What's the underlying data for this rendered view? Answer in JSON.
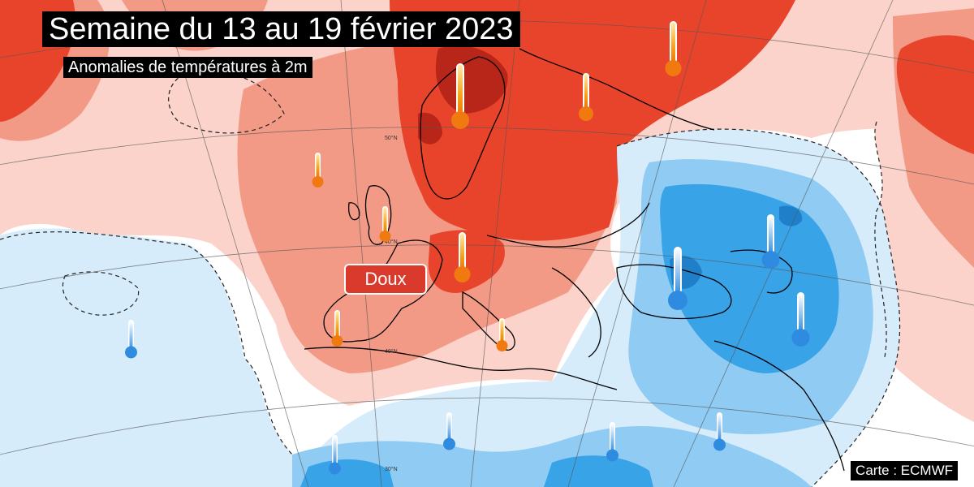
{
  "header": {
    "title": "Semaine du 13 au 19 février 2023",
    "subtitle": "Anomalies de températures à 2m"
  },
  "legend": {
    "warm_label": "Doux"
  },
  "footer": {
    "credit": "Carte : ECMWF"
  },
  "latitude_labels": [
    "50°N",
    "40°N",
    "40°N",
    "30°N"
  ],
  "colors": {
    "warm_strong": "#e8442b",
    "warm_very_strong": "#b8261a",
    "warm_moderate": "#f39a87",
    "warm_light": "#fbd3cb",
    "cold_light": "#d7ecfb",
    "cold_moderate": "#8fcbf2",
    "cold_strong": "#39a3e8",
    "cold_very_strong": "#1f7fc8",
    "neutral": "#ffffff",
    "thermo_warm": "#f07a10",
    "thermo_cold": "#2e8be0"
  },
  "thermometers": [
    {
      "region": "scandinavia",
      "type": "warm",
      "level": "strong"
    },
    {
      "region": "finland",
      "type": "warm",
      "level": "moderate"
    },
    {
      "region": "western-russia",
      "type": "warm",
      "level": "strong"
    },
    {
      "region": "north-atlantic",
      "type": "warm",
      "level": "moderate"
    },
    {
      "region": "united-kingdom",
      "type": "warm",
      "level": "moderate"
    },
    {
      "region": "alps",
      "type": "warm",
      "level": "strong"
    },
    {
      "region": "iberia",
      "type": "warm",
      "level": "moderate"
    },
    {
      "region": "italy",
      "type": "warm",
      "level": "moderate"
    },
    {
      "region": "black-sea",
      "type": "cold",
      "level": "strong"
    },
    {
      "region": "caucasus",
      "type": "cold",
      "level": "strong"
    },
    {
      "region": "anatolia-east",
      "type": "cold",
      "level": "strong"
    },
    {
      "region": "atlantic-azores",
      "type": "cold",
      "level": "moderate"
    },
    {
      "region": "morocco",
      "type": "cold",
      "level": "moderate"
    },
    {
      "region": "algeria",
      "type": "cold",
      "level": "moderate"
    },
    {
      "region": "libya",
      "type": "cold",
      "level": "moderate"
    },
    {
      "region": "egypt",
      "type": "cold",
      "level": "moderate"
    }
  ]
}
